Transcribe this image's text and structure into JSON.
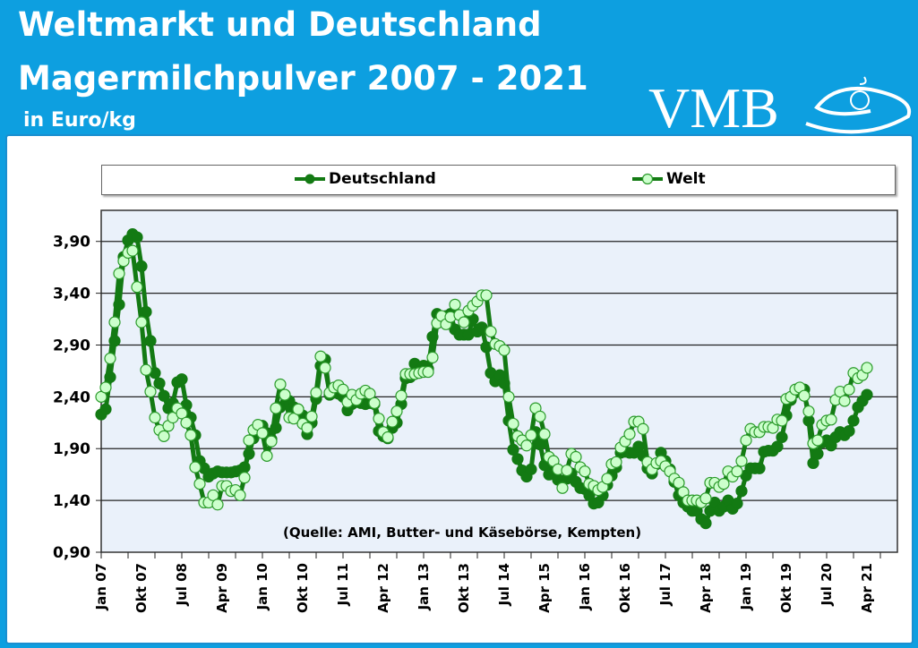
{
  "header": {
    "title_line1": "Weltmarkt und Deutschland",
    "title_line2": "Magermilchpulver 2007 - 2021",
    "unit": "in Euro/kg",
    "logo_text": "VMB"
  },
  "colors": {
    "header_bg": "#0d9fe0",
    "plot_bg": "#eaf1fa",
    "deutschland_line": "#137a13",
    "deutschland_marker": "#137a13",
    "welt_marker_fill": "#ccffcc",
    "welt_marker_stroke": "#2a9a2a"
  },
  "chart_data": {
    "type": "line",
    "title": "",
    "xlabel": "",
    "ylabel": "",
    "ylim": [
      0.9,
      4.2
    ],
    "yticks": [
      "0,90",
      "1,40",
      "1,90",
      "2,40",
      "2,90",
      "3,40",
      "3,90"
    ],
    "ytick_values": [
      0.9,
      1.4,
      1.9,
      2.4,
      2.9,
      3.4,
      3.9
    ],
    "x_start": "Jan 07",
    "x_end": "Apr 21",
    "x_frequency": "monthly",
    "xtick_labels": [
      "Jan 07",
      "Okt 07",
      "Jul 08",
      "Apr 09",
      "Jan 10",
      "Okt 10",
      "Jul 11",
      "Apr 12",
      "Jan 13",
      "Okt 13",
      "Jul 14",
      "Apr 15",
      "Jan 16",
      "Okt 16",
      "Jul 17",
      "Apr 18",
      "Jan 19",
      "Okt 19",
      "Jul 20",
      "Apr 21"
    ],
    "grid": "horizontal",
    "legend_placement": "top",
    "annotation": "(Quelle: AMI, Butter- und Käsebörse, Kempten)",
    "series": [
      {
        "name": "Deutschland",
        "values": [
          2.23,
          2.28,
          2.59,
          2.94,
          3.29,
          3.75,
          3.91,
          3.97,
          3.94,
          3.66,
          3.22,
          2.94,
          2.63,
          2.53,
          2.41,
          2.29,
          2.34,
          2.54,
          2.57,
          2.32,
          2.2,
          2.03,
          1.78,
          1.71,
          1.63,
          1.66,
          1.68,
          1.67,
          1.67,
          1.67,
          1.68,
          1.69,
          1.72,
          1.85,
          2.0,
          2.08,
          2.12,
          2.05,
          1.99,
          2.1,
          2.3,
          2.42,
          2.36,
          2.3,
          2.28,
          2.22,
          2.04,
          2.15,
          2.38,
          2.7,
          2.76,
          2.42,
          2.44,
          2.43,
          2.4,
          2.27,
          2.33,
          2.35,
          2.34,
          2.33,
          2.34,
          2.33,
          2.07,
          2.02,
          2.0,
          2.1,
          2.15,
          2.33,
          2.58,
          2.59,
          2.72,
          2.66,
          2.7,
          2.67,
          2.98,
          3.2,
          3.16,
          3.18,
          3.2,
          3.05,
          3.0,
          3.0,
          3.0,
          3.15,
          3.03,
          3.07,
          2.88,
          2.63,
          2.55,
          2.61,
          2.53,
          2.17,
          1.89,
          1.8,
          1.69,
          1.63,
          1.7,
          2.06,
          1.94,
          1.74,
          1.65,
          1.68,
          1.6,
          1.59,
          1.61,
          1.66,
          1.58,
          1.52,
          1.51,
          1.45,
          1.37,
          1.38,
          1.45,
          1.55,
          1.64,
          1.72,
          1.86,
          1.87,
          1.86,
          1.86,
          1.92,
          1.83,
          1.71,
          1.66,
          1.75,
          1.86,
          1.78,
          1.7,
          1.58,
          1.45,
          1.38,
          1.34,
          1.3,
          1.3,
          1.22,
          1.18,
          1.3,
          1.38,
          1.3,
          1.34,
          1.4,
          1.32,
          1.37,
          1.49,
          1.64,
          1.71,
          1.71,
          1.71,
          1.87,
          1.88,
          1.88,
          1.92,
          2.01,
          2.22,
          2.37,
          2.44,
          2.48,
          2.47,
          2.17,
          1.76,
          1.85,
          1.96,
          1.98,
          1.93,
          2.01,
          2.06,
          2.03,
          2.07,
          2.17,
          2.3,
          2.36,
          2.42
        ]
      },
      {
        "name": "Welt",
        "values": [
          2.4,
          2.49,
          2.77,
          3.12,
          3.59,
          3.71,
          3.79,
          3.81,
          3.46,
          3.12,
          2.66,
          2.45,
          2.2,
          2.08,
          2.02,
          2.12,
          2.2,
          2.29,
          2.24,
          2.15,
          2.03,
          1.72,
          1.56,
          1.38,
          1.38,
          1.45,
          1.36,
          1.54,
          1.54,
          1.49,
          1.5,
          1.45,
          1.62,
          1.98,
          2.08,
          2.13,
          2.05,
          1.83,
          1.97,
          2.29,
          2.52,
          2.42,
          2.2,
          2.19,
          2.28,
          2.14,
          2.1,
          2.21,
          2.44,
          2.79,
          2.68,
          2.44,
          2.49,
          2.51,
          2.47,
          2.35,
          2.42,
          2.37,
          2.43,
          2.46,
          2.43,
          2.34,
          2.19,
          2.06,
          2.01,
          2.16,
          2.26,
          2.41,
          2.62,
          2.62,
          2.62,
          2.63,
          2.64,
          2.64,
          2.78,
          3.11,
          3.18,
          3.1,
          3.17,
          3.29,
          3.19,
          3.12,
          3.23,
          3.28,
          3.32,
          3.38,
          3.38,
          3.03,
          2.91,
          2.89,
          2.85,
          2.4,
          2.14,
          2.02,
          1.98,
          1.93,
          2.03,
          2.29,
          2.21,
          2.04,
          1.82,
          1.78,
          1.7,
          1.52,
          1.69,
          1.85,
          1.82,
          1.72,
          1.68,
          1.56,
          1.54,
          1.5,
          1.53,
          1.61,
          1.75,
          1.77,
          1.91,
          1.97,
          2.04,
          2.16,
          2.16,
          2.09,
          1.77,
          1.7,
          1.76,
          1.78,
          1.73,
          1.68,
          1.61,
          1.57,
          1.48,
          1.4,
          1.4,
          1.4,
          1.38,
          1.42,
          1.57,
          1.57,
          1.53,
          1.56,
          1.68,
          1.63,
          1.68,
          1.78,
          1.98,
          2.09,
          2.06,
          2.06,
          2.11,
          2.11,
          2.1,
          2.18,
          2.17,
          2.38,
          2.4,
          2.47,
          2.49,
          2.41,
          2.26,
          1.95,
          1.98,
          2.13,
          2.17,
          2.18,
          2.37,
          2.45,
          2.36,
          2.47,
          2.63,
          2.58,
          2.61,
          2.68
        ]
      }
    ]
  }
}
